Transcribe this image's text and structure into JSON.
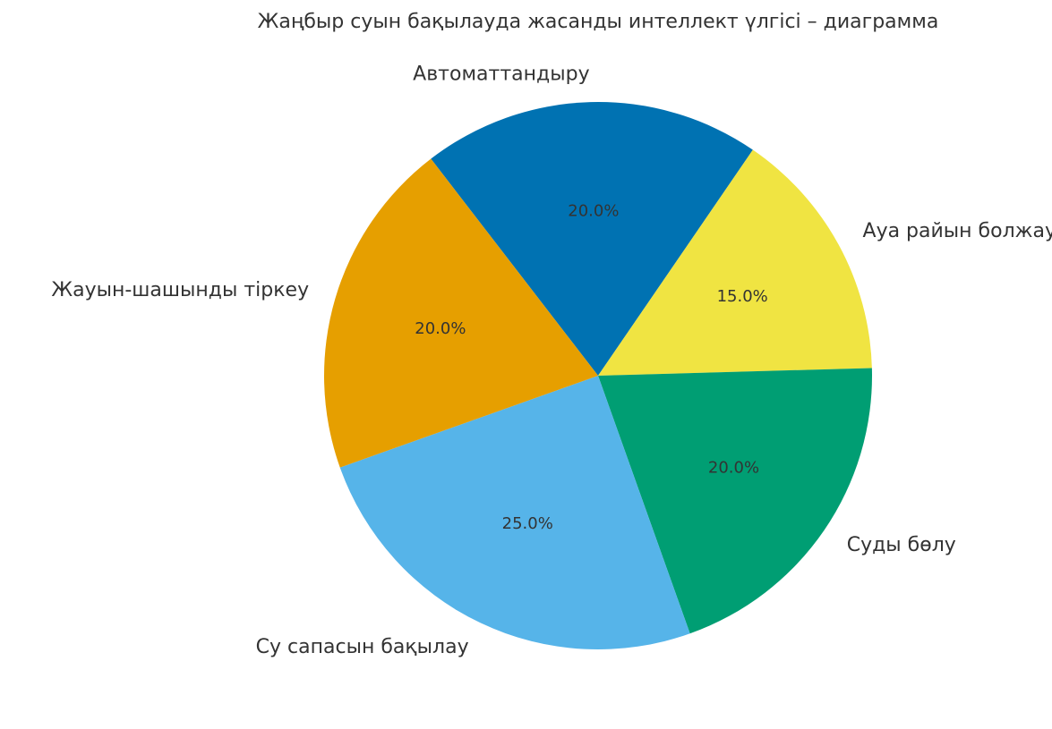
{
  "chart_data": {
    "type": "pie",
    "title": "Жаңбыр суын бақылауда жасанды интеллект үлгісі – диаграмма",
    "categories": [
      "Автоматтандыру",
      "Ауа райын болжау",
      "Суды бөлу",
      "Су сапасын бақылау",
      "Жауын-шашынды тіркеу"
    ],
    "values": [
      20,
      15,
      20,
      25,
      20
    ],
    "value_labels": [
      "20.0%",
      "15.0%",
      "20.0%",
      "25.0%",
      "20.0%"
    ],
    "colors": [
      "#0072b2",
      "#f0e442",
      "#009e73",
      "#56b4e9",
      "#e69f00"
    ]
  }
}
